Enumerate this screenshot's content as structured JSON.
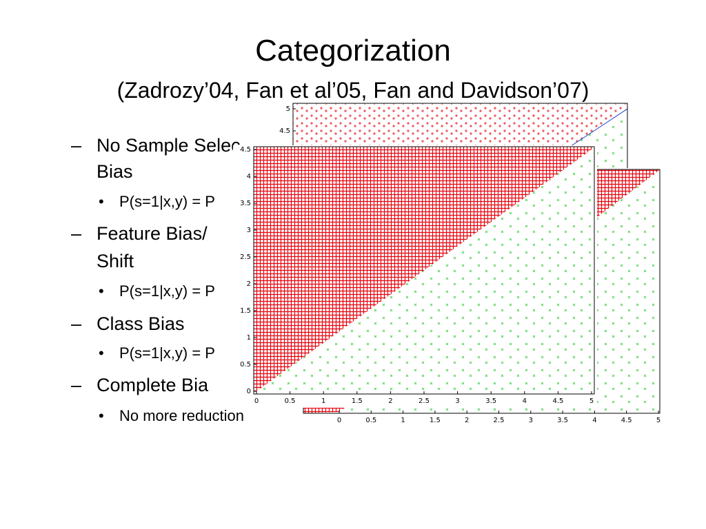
{
  "title": "Categorization",
  "subtitle": "(Zadrozy’04, Fan et al’05, Fan and Davidson’07)",
  "lines": [
    {
      "level": 1,
      "text": "No Sample Selec"
    },
    {
      "level": 0,
      "text": "Bias"
    },
    {
      "level": 2,
      "text": "P(s=1|x,y) = P"
    },
    {
      "level": 1,
      "text": "Feature Bias/"
    },
    {
      "level": 0,
      "text": "Shift"
    },
    {
      "level": 2,
      "text": "P(s=1|x,y) = P"
    },
    {
      "level": 1,
      "text": "Class Bias"
    },
    {
      "level": 2,
      "text": "P(s=1|x,y) = P"
    },
    {
      "level": 1,
      "text": "Complete Bia"
    },
    {
      "level": 2,
      "text": "No more reduction"
    }
  ],
  "plots": [
    {
      "name": "back-top",
      "xlim": [
        0,
        5
      ],
      "ylim": [
        0,
        5
      ],
      "xticks": [],
      "yticks": [
        4.5,
        5
      ],
      "boundary": true
    },
    {
      "name": "back-right",
      "xlim": [
        0,
        5
      ],
      "ylim": [
        0,
        4.5
      ],
      "xticks": [
        0,
        0.5,
        1,
        1.5,
        2,
        2.5,
        3,
        3.5,
        4,
        4.5,
        5
      ],
      "yticks": [],
      "boundary": false
    },
    {
      "name": "front",
      "xlim": [
        0,
        5
      ],
      "ylim": [
        0,
        4.5
      ],
      "xticks": [
        0,
        0.5,
        1,
        1.5,
        2,
        2.5,
        3,
        3.5,
        4,
        4.5,
        5
      ],
      "yticks": [
        0,
        0.5,
        1,
        1.5,
        2,
        2.5,
        3,
        3.5,
        4,
        4.5
      ],
      "boundary": false
    }
  ]
}
